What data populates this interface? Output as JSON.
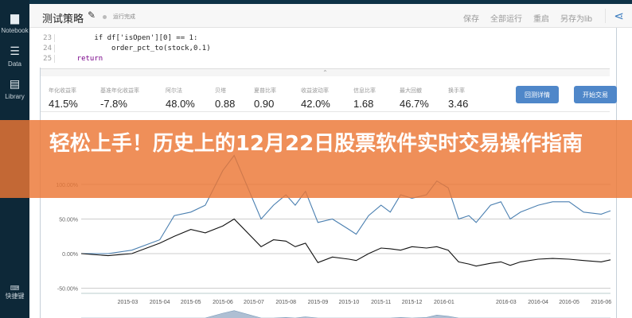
{
  "sidebar": {
    "items": [
      {
        "label": "Notebook",
        "icon": "notebook-icon"
      },
      {
        "label": "Data",
        "icon": "data-icon"
      },
      {
        "label": "Library",
        "icon": "library-icon"
      }
    ],
    "shortcut": {
      "label": "快捷键",
      "icon": "keyboard-icon"
    }
  },
  "header": {
    "title": "测试策略",
    "status": "运行完成",
    "actions": [
      "保存",
      "全部运行",
      "重启",
      "另存为lib"
    ]
  },
  "code": {
    "lines": [
      {
        "n": "23",
        "text": "        if df['isOpen'][0] == 1:"
      },
      {
        "n": "24",
        "text": "            order_pct_to(stock,0.1)"
      },
      {
        "n": "25",
        "text": "    return"
      }
    ]
  },
  "stats": [
    {
      "label": "年化收益率",
      "value": "41.5%"
    },
    {
      "label": "基准年化收益率",
      "value": "-7.8%"
    },
    {
      "label": "阿尔法",
      "value": "48.0%"
    },
    {
      "label": "贝塔",
      "value": "0.88"
    },
    {
      "label": "夏普比率",
      "value": "0.90"
    },
    {
      "label": "收益波动率",
      "value": "42.0%"
    },
    {
      "label": "信息比率",
      "value": "1.68"
    },
    {
      "label": "最大回撤",
      "value": "46.7%"
    },
    {
      "label": "换手率",
      "value": "3.46"
    }
  ],
  "buttons": {
    "detail": "回测详情",
    "trade": "开始交易"
  },
  "overlay": {
    "title": "轻松上手！历史上的12月22日股票软件实时交易操作指南"
  },
  "chart_data": {
    "type": "line",
    "yticks": [
      "100.00%",
      "50.00%",
      "0.00%",
      "-50.00%"
    ],
    "ylim": [
      -50,
      140
    ],
    "xticks": [
      "2015-03",
      "2015-04",
      "2015-05",
      "2015-06",
      "2015-07",
      "2015-08",
      "2015-09",
      "2015-10",
      "2015-11",
      "2015-12",
      "2016-01",
      "2016-03",
      "2016-04",
      "2016-05",
      "2016-06"
    ],
    "grid": true,
    "colors": {
      "strategy": "#4a7fb0",
      "benchmark": "#111111"
    },
    "x": [
      "2015-01-15",
      "2015-02-10",
      "2015-03-05",
      "2015-04-01",
      "2015-04-15",
      "2015-05-01",
      "2015-05-15",
      "2015-06-01",
      "2015-06-12",
      "2015-07-08",
      "2015-07-20",
      "2015-08-01",
      "2015-08-10",
      "2015-08-20",
      "2015-09-01",
      "2015-09-15",
      "2015-10-01",
      "2015-10-08",
      "2015-10-20",
      "2015-11-01",
      "2015-11-10",
      "2015-11-20",
      "2015-12-01",
      "2015-12-15",
      "2015-12-25",
      "2016-01-05",
      "2016-01-15",
      "2016-01-25",
      "2016-02-01",
      "2016-02-15",
      "2016-02-25",
      "2016-03-05",
      "2016-03-15",
      "2016-04-01",
      "2016-04-15",
      "2016-05-01",
      "2016-05-15",
      "2016-06-01",
      "2016-06-10"
    ],
    "series": [
      {
        "values": [
          0,
          0,
          5,
          20,
          55,
          60,
          70,
          120,
          142,
          50,
          70,
          85,
          70,
          90,
          45,
          50,
          35,
          28,
          55,
          70,
          60,
          85,
          80,
          85,
          105,
          95,
          50,
          55,
          45,
          70,
          75,
          50,
          60,
          70,
          75,
          75,
          60,
          57,
          62
        ]
      },
      {
        "values": [
          0,
          -3,
          0,
          15,
          25,
          35,
          30,
          40,
          50,
          10,
          20,
          18,
          10,
          15,
          -13,
          -5,
          -8,
          -10,
          0,
          8,
          7,
          5,
          10,
          8,
          10,
          5,
          -12,
          -15,
          -18,
          -14,
          -12,
          -17,
          -12,
          -8,
          -7,
          -8,
          -10,
          -12,
          -9
        ]
      }
    ]
  }
}
